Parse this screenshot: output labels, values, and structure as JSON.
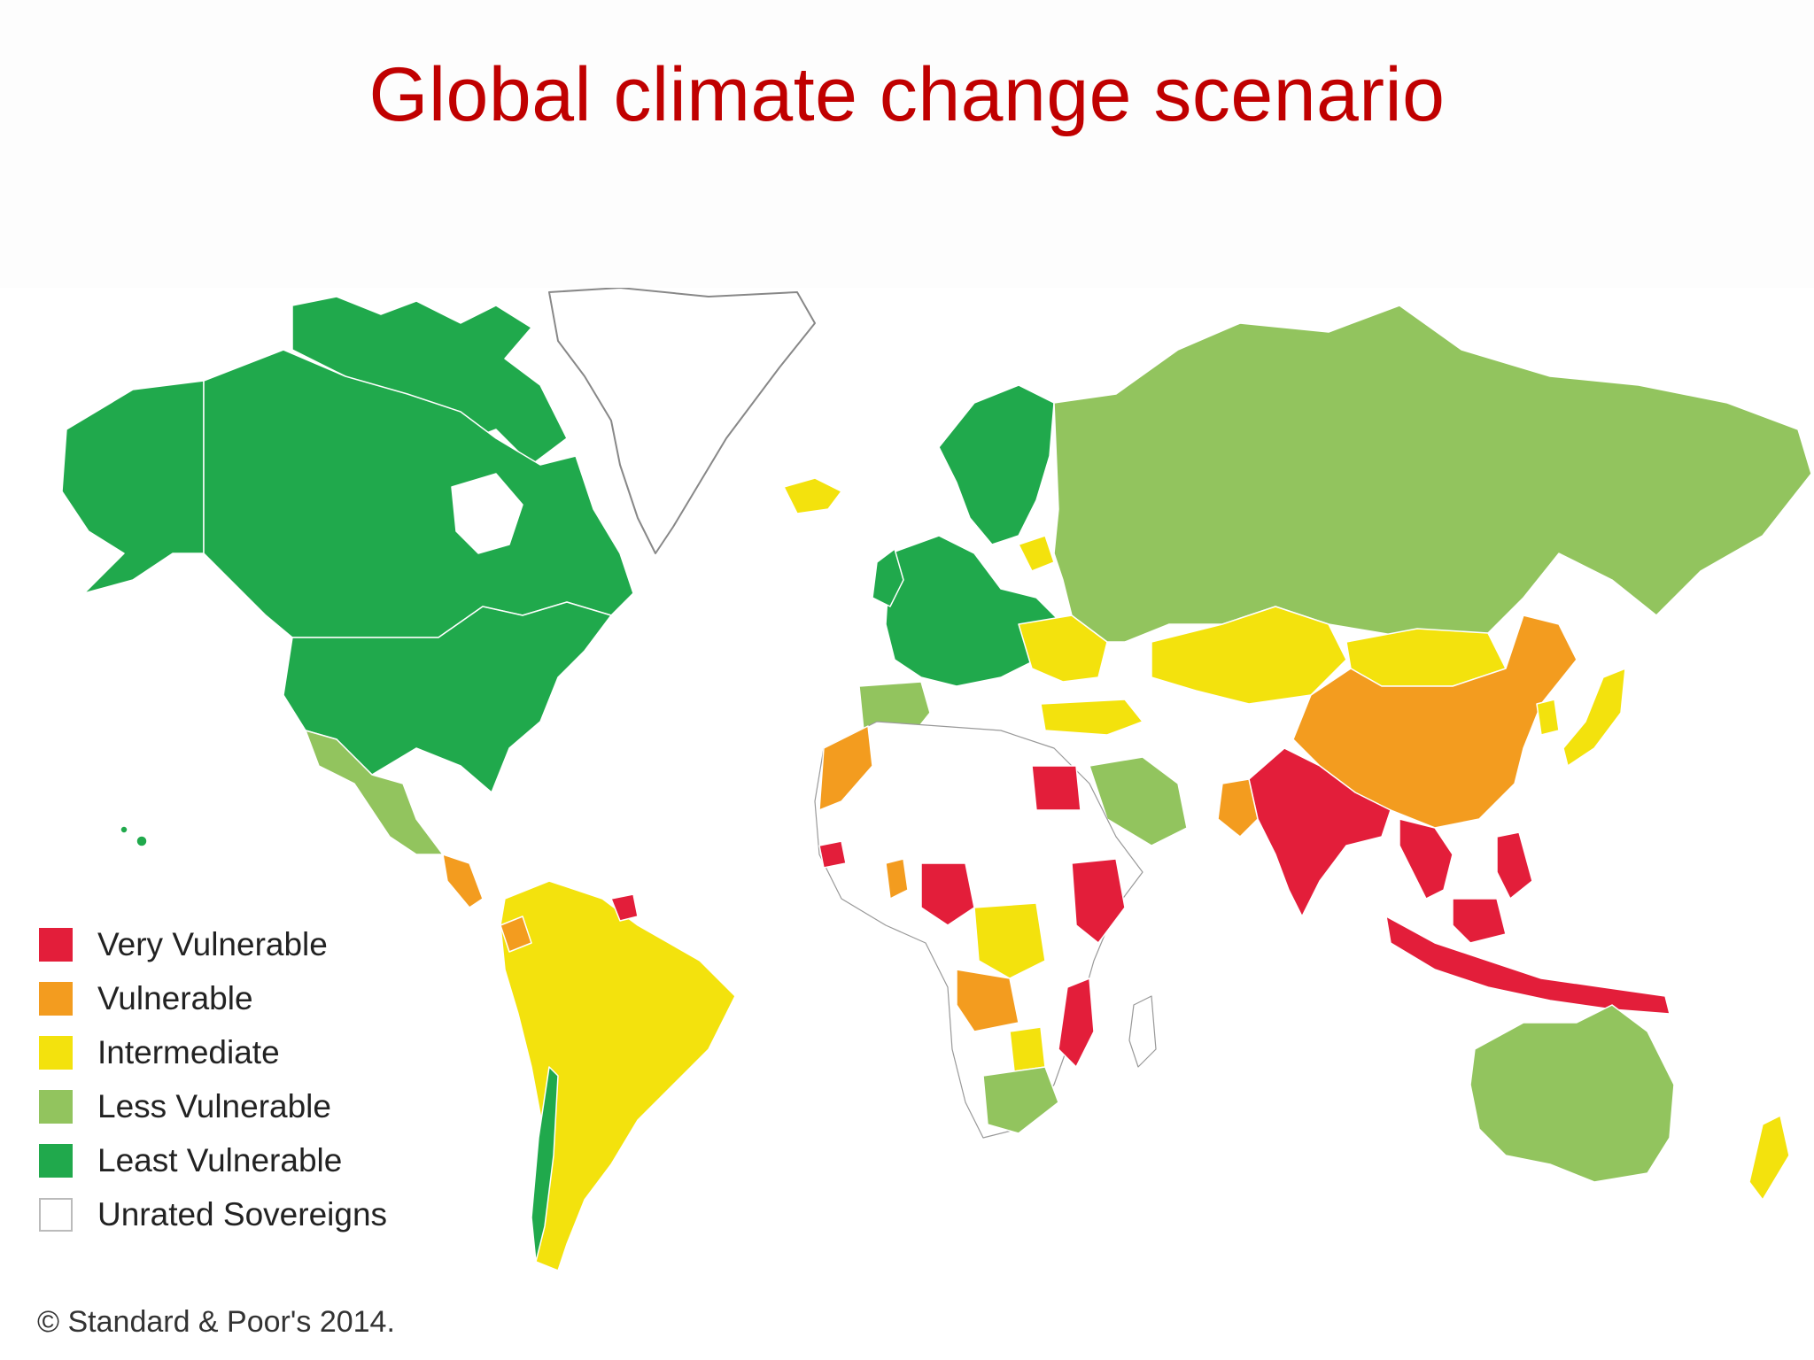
{
  "title": "Global climate change scenario",
  "legend": [
    {
      "label": "Very Vulnerable",
      "color": "#e31e3a"
    },
    {
      "label": "Vulnerable",
      "color": "#f39c1f"
    },
    {
      "label": "Intermediate",
      "color": "#f3e20d"
    },
    {
      "label": "Less Vulnerable",
      "color": "#92c45e"
    },
    {
      "label": "Least Vulnerable",
      "color": "#20a94c"
    },
    {
      "label": "Unrated Sovereigns",
      "color": "#ffffff"
    }
  ],
  "copyright": "© Standard & Poor's 2014."
}
